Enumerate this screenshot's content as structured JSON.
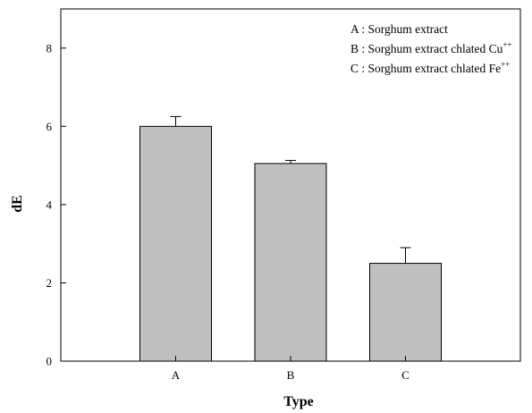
{
  "chart_data": {
    "type": "bar",
    "categories": [
      "A",
      "B",
      "C"
    ],
    "series": [
      {
        "values": [
          6.0,
          5.05,
          2.5
        ],
        "errors": [
          0.25,
          0.08,
          0.4
        ]
      }
    ],
    "xlabel": "Type",
    "ylabel": "dE",
    "ylim": [
      0,
      9
    ],
    "yticks": [
      0,
      2,
      4,
      6,
      8
    ],
    "grid": false,
    "legend_placement": "top-right",
    "bar_color": "#c0c0c0",
    "legend": [
      {
        "prefix": "A : Sorghum extract",
        "sup": ""
      },
      {
        "prefix": "B : Sorghum extract chlated Cu",
        "sup": "++"
      },
      {
        "prefix": "C : Sorghum extract chlated Fe",
        "sup": "++"
      }
    ]
  }
}
